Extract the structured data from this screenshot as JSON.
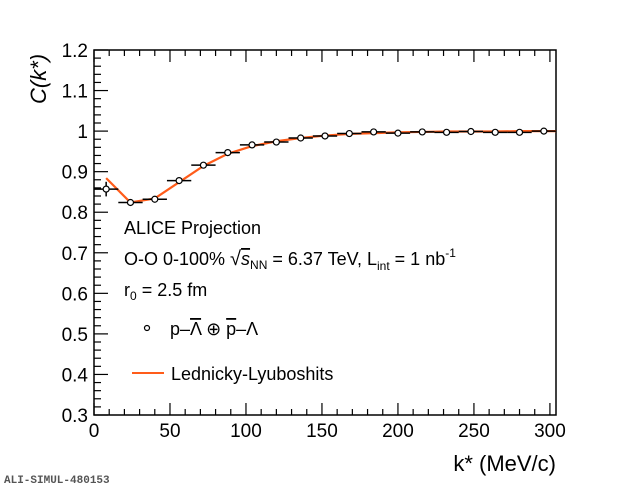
{
  "chart_data": {
    "type": "scatter",
    "title": "",
    "xlabel": "k* (MeV/c)",
    "ylabel": "C(k*)",
    "xlim": [
      0,
      304
    ],
    "ylim": [
      0.3,
      1.2
    ],
    "xticks": [
      0,
      50,
      100,
      150,
      200,
      250,
      300
    ],
    "yticks": [
      0.3,
      0.4,
      0.5,
      0.6,
      0.7,
      0.8,
      0.9,
      1,
      1.1,
      1.2
    ],
    "ytick_labels": [
      "0.3",
      "0.4",
      "0.5",
      "0.6",
      "0.7",
      "0.8",
      "0.9",
      "1",
      "1.1",
      "1.2"
    ],
    "xtick_labels": [
      "0",
      "50",
      "100",
      "150",
      "200",
      "250",
      "300"
    ],
    "grid": false,
    "series": [
      {
        "name": "p–Λ̄ ⊕ p̄–Λ",
        "kind": "points",
        "x": [
          8,
          24,
          40,
          56,
          72,
          88,
          104,
          120,
          136,
          152,
          168,
          184,
          200,
          216,
          232,
          248,
          264,
          280,
          296
        ],
        "y": [
          0.857,
          0.824,
          0.832,
          0.878,
          0.916,
          0.947,
          0.966,
          0.973,
          0.983,
          0.988,
          0.994,
          0.998,
          0.995,
          0.998,
          0.997,
          0.999,
          0.997,
          0.997,
          1.0
        ],
        "x_err": 8,
        "y_err": [
          0.018,
          0.004,
          0.004,
          0.003,
          0.003,
          0.002,
          0.002,
          0.002,
          0.002,
          0.002,
          0.002,
          0.002,
          0.002,
          0.002,
          0.002,
          0.002,
          0.002,
          0.002,
          0.002
        ],
        "color": "#000000"
      },
      {
        "name": "Lednicky-Lyuboshits",
        "kind": "line",
        "x": [
          8,
          24,
          40,
          56,
          72,
          88,
          104,
          120,
          136,
          152,
          168,
          184,
          200,
          216,
          232,
          248,
          264,
          280,
          296,
          304
        ],
        "y": [
          0.884,
          0.824,
          0.834,
          0.874,
          0.914,
          0.944,
          0.963,
          0.975,
          0.983,
          0.989,
          0.993,
          0.995,
          0.997,
          0.998,
          0.999,
          0.999,
          0.999,
          1.0,
          1.0,
          1.0
        ],
        "color": "#ff5c1a"
      }
    ],
    "annotations": {
      "line1": "ALICE Projection",
      "line2_prefix": "O-O 0-100% ",
      "line2_sqrt": "s",
      "line2_sub": "NN",
      "line2_mid": " = 6.37 TeV, L",
      "line2_lsub": "int",
      "line2_end": " = 1 nb",
      "line2_sup": "-1",
      "line3_r": "r",
      "line3_sub": "0",
      "line3_end": " = 2.5 fm"
    },
    "legend": {
      "placement": "left-lower",
      "entries": [
        {
          "label_parts": [
            "p–",
            "Λ",
            " ⊕ ",
            "p",
            "–Λ"
          ],
          "marker": "circle"
        },
        {
          "label": "Lednicky-Lyuboshits",
          "marker": "line"
        }
      ]
    }
  },
  "footer_id": "ALI-SIMUL-480153"
}
